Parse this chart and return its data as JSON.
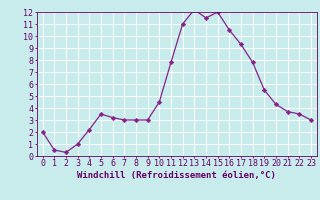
{
  "x": [
    0,
    1,
    2,
    3,
    4,
    5,
    6,
    7,
    8,
    9,
    10,
    11,
    12,
    13,
    14,
    15,
    16,
    17,
    18,
    19,
    20,
    21,
    22,
    23
  ],
  "y": [
    2.0,
    0.5,
    0.3,
    1.0,
    2.2,
    3.5,
    3.2,
    3.0,
    3.0,
    3.0,
    4.5,
    7.8,
    11.0,
    12.2,
    11.5,
    12.0,
    10.5,
    9.3,
    7.8,
    5.5,
    4.3,
    3.7,
    3.5,
    3.0
  ],
  "xlabel": "Windchill (Refroidissement éolien,°C)",
  "xlim": [
    -0.5,
    23.5
  ],
  "ylim": [
    0,
    12
  ],
  "yticks": [
    0,
    1,
    2,
    3,
    4,
    5,
    6,
    7,
    8,
    9,
    10,
    11,
    12
  ],
  "xticks": [
    0,
    1,
    2,
    3,
    4,
    5,
    6,
    7,
    8,
    9,
    10,
    11,
    12,
    13,
    14,
    15,
    16,
    17,
    18,
    19,
    20,
    21,
    22,
    23
  ],
  "line_color": "#882288",
  "marker": "D",
  "marker_size": 2.2,
  "bg_color": "#c8ecec",
  "grid_color": "#ffffff",
  "label_color": "#660066",
  "tick_fontsize": 6.0,
  "xlabel_fontsize": 6.5
}
